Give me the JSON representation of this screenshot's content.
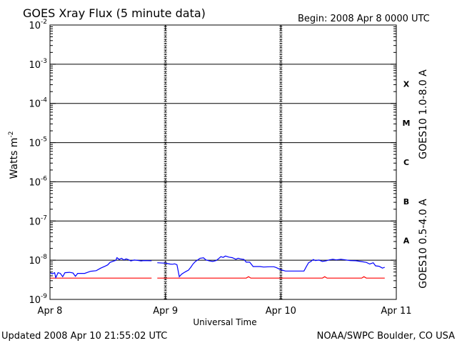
{
  "header": {
    "title": "GOES Xray Flux (5 minute data)",
    "begin": "Begin:  2008 Apr 8 0000 UTC"
  },
  "footer": {
    "updated": "Updated 2008 Apr 10 21:55:02 UTC",
    "credit": "NOAA/SWPC Boulder, CO USA"
  },
  "colors": {
    "long_channel": "#ff0000",
    "short_channel": "#0000ff",
    "grid": "#000000"
  },
  "chart_data": {
    "type": "line",
    "title": "GOES Xray Flux (5 minute data)",
    "xlabel": "Universal Time",
    "ylabel": "Watts m",
    "ylabel_superscript": "-2",
    "y_scale": "log",
    "ylim": [
      1e-09,
      0.01
    ],
    "grid": true,
    "y_ticks": [
      {
        "value": 0.01,
        "base": "10",
        "exp": "-2"
      },
      {
        "value": 0.001,
        "base": "10",
        "exp": "-3"
      },
      {
        "value": 0.0001,
        "base": "10",
        "exp": "-4"
      },
      {
        "value": 1e-05,
        "base": "10",
        "exp": "-5"
      },
      {
        "value": 1e-06,
        "base": "10",
        "exp": "-6"
      },
      {
        "value": 1e-07,
        "base": "10",
        "exp": "-7"
      },
      {
        "value": 1e-08,
        "base": "10",
        "exp": "-8"
      },
      {
        "value": 1e-09,
        "base": "10",
        "exp": "-9"
      }
    ],
    "x_ticks": [
      {
        "value": 0,
        "label": "Apr 8"
      },
      {
        "value": 1,
        "label": "Apr 9"
      },
      {
        "value": 2,
        "label": "Apr 10"
      },
      {
        "value": 3,
        "label": "Apr 11"
      }
    ],
    "flare_classes": [
      {
        "label": "X",
        "low": 0.0001,
        "high": 0.001
      },
      {
        "label": "M",
        "low": 1e-05,
        "high": 0.0001
      },
      {
        "label": "C",
        "low": 1e-06,
        "high": 1e-05
      },
      {
        "label": "B",
        "low": 1e-07,
        "high": 1e-06
      },
      {
        "label": "A",
        "low": 1e-08,
        "high": 1e-07
      }
    ],
    "series": [
      {
        "name": "GOES10 1.0-8.0 A",
        "color": "#ff0000",
        "segments": [
          [
            [
              0.0,
              3.5e-09
            ],
            [
              0.88,
              3.5e-09
            ]
          ],
          [
            [
              0.93,
              3.5e-09
            ],
            [
              1.7,
              3.5e-09
            ],
            [
              1.72,
              3.8e-09
            ],
            [
              1.74,
              3.5e-09
            ],
            [
              2.36,
              3.5e-09
            ],
            [
              2.38,
              3.8e-09
            ],
            [
              2.4,
              3.5e-09
            ],
            [
              2.7,
              3.5e-09
            ],
            [
              2.72,
              3.8e-09
            ],
            [
              2.74,
              3.5e-09
            ],
            [
              2.9,
              3.5e-09
            ]
          ]
        ]
      },
      {
        "name": "GOES10 0.5-4.0 A",
        "color": "#0000ff",
        "segments": [
          [
            [
              0.0,
              4.8e-09
            ],
            [
              0.02,
              4.5e-09
            ],
            [
              0.04,
              4.8e-09
            ],
            [
              0.05,
              3.6e-09
            ],
            [
              0.07,
              4.8e-09
            ],
            [
              0.09,
              4.6e-09
            ],
            [
              0.11,
              3.8e-09
            ],
            [
              0.13,
              4.8e-09
            ],
            [
              0.17,
              4.9e-09
            ],
            [
              0.2,
              4.7e-09
            ],
            [
              0.22,
              3.9e-09
            ],
            [
              0.24,
              4.6e-09
            ],
            [
              0.3,
              4.6e-09
            ],
            [
              0.35,
              5.2e-09
            ],
            [
              0.4,
              5.4e-09
            ],
            [
              0.44,
              6.3e-09
            ],
            [
              0.48,
              7.1e-09
            ],
            [
              0.5,
              7.6e-09
            ],
            [
              0.52,
              8.8e-09
            ],
            [
              0.55,
              9.5e-09
            ],
            [
              0.57,
              9.9e-09
            ],
            [
              0.58,
              1.16e-08
            ],
            [
              0.6,
              1.05e-08
            ],
            [
              0.62,
              1.12e-08
            ],
            [
              0.64,
              1.02e-08
            ],
            [
              0.66,
              1.08e-08
            ],
            [
              0.68,
              1.03e-08
            ],
            [
              0.7,
              9.6e-09
            ],
            [
              0.73,
              1.01e-08
            ],
            [
              0.76,
              9.9e-09
            ],
            [
              0.79,
              9.6e-09
            ],
            [
              0.81,
              9.8e-09
            ],
            [
              0.88,
              9.7e-09
            ]
          ],
          [
            [
              0.93,
              8.6e-09
            ],
            [
              1.0,
              8.4e-09
            ],
            [
              1.02,
              8.2e-09
            ],
            [
              1.04,
              8e-09
            ],
            [
              1.06,
              7.9e-09
            ],
            [
              1.08,
              8.1e-09
            ],
            [
              1.1,
              7.7e-09
            ],
            [
              1.12,
              3.8e-09
            ],
            [
              1.14,
              4.4e-09
            ],
            [
              1.16,
              4.8e-09
            ],
            [
              1.18,
              5.2e-09
            ],
            [
              1.2,
              5.6e-09
            ],
            [
              1.22,
              6.6e-09
            ],
            [
              1.24,
              8.1e-09
            ],
            [
              1.26,
              9.3e-09
            ],
            [
              1.28,
              1.02e-08
            ],
            [
              1.3,
              1.12e-08
            ],
            [
              1.33,
              1.15e-08
            ],
            [
              1.35,
              1.02e-08
            ],
            [
              1.38,
              9.6e-09
            ],
            [
              1.41,
              9.3e-09
            ],
            [
              1.44,
              9.8e-09
            ],
            [
              1.46,
              1.09e-08
            ],
            [
              1.48,
              1.23e-08
            ],
            [
              1.5,
              1.18e-08
            ],
            [
              1.52,
              1.28e-08
            ],
            [
              1.55,
              1.2e-08
            ],
            [
              1.58,
              1.16e-08
            ],
            [
              1.61,
              1.06e-08
            ],
            [
              1.63,
              1.12e-08
            ],
            [
              1.65,
              1.08e-08
            ],
            [
              1.68,
              1.05e-08
            ],
            [
              1.7,
              8.9e-09
            ],
            [
              1.73,
              8.9e-09
            ],
            [
              1.76,
              6.9e-09
            ],
            [
              1.82,
              6.9e-09
            ],
            [
              1.85,
              6.7e-09
            ],
            [
              1.9,
              6.8e-09
            ],
            [
              1.94,
              6.8e-09
            ],
            [
              1.96,
              6.5e-09
            ],
            [
              2.0,
              5.7e-09
            ],
            [
              2.04,
              5.3e-09
            ],
            [
              2.1,
              5.3e-09
            ],
            [
              2.15,
              5.3e-09
            ],
            [
              2.2,
              5.3e-09
            ],
            [
              2.22,
              6.8e-09
            ],
            [
              2.24,
              8.6e-09
            ],
            [
              2.26,
              9.3e-09
            ],
            [
              2.28,
              1.04e-08
            ],
            [
              2.3,
              9.8e-09
            ],
            [
              2.33,
              1.01e-08
            ],
            [
              2.36,
              9.3e-09
            ],
            [
              2.39,
              9.6e-09
            ],
            [
              2.42,
              1.02e-08
            ],
            [
              2.45,
              1.06e-08
            ],
            [
              2.48,
              1.02e-08
            ],
            [
              2.52,
              1.06e-08
            ],
            [
              2.56,
              1.02e-08
            ],
            [
              2.6,
              9.8e-09
            ],
            [
              2.65,
              9.7e-09
            ],
            [
              2.7,
              9.2e-09
            ],
            [
              2.74,
              8.8e-09
            ],
            [
              2.77,
              8e-09
            ],
            [
              2.8,
              8.6e-09
            ],
            [
              2.82,
              7.2e-09
            ],
            [
              2.85,
              7e-09
            ],
            [
              2.88,
              6.3e-09
            ],
            [
              2.9,
              6.6e-09
            ]
          ]
        ]
      }
    ]
  }
}
